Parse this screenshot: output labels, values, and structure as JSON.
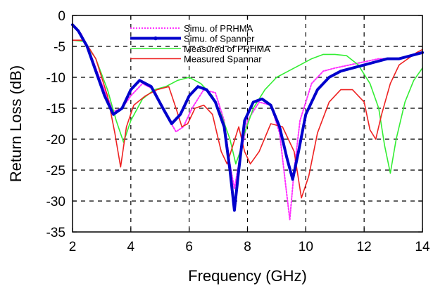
{
  "chart_data": {
    "type": "line",
    "title": "",
    "xlabel": "Frequency (GHz)",
    "ylabel": "Return Loss (dB)",
    "xlim": [
      2,
      14
    ],
    "ylim": [
      -35,
      0
    ],
    "xticks": [
      2,
      4,
      6,
      8,
      10,
      12,
      14
    ],
    "yticks": [
      0,
      -5,
      -10,
      -15,
      -20,
      -25,
      -30,
      -35
    ],
    "grid": true,
    "legend_position": "top-center",
    "series": [
      {
        "name": "Simu. of PRHMA",
        "color": "#ff33ff",
        "dash": "dotted",
        "width": 2,
        "x": [
          2.0,
          2.3,
          2.6,
          3.0,
          3.4,
          3.7,
          4.0,
          4.4,
          4.8,
          5.2,
          5.55,
          5.8,
          6.1,
          6.5,
          6.9,
          7.2,
          7.4,
          7.55,
          7.7,
          8.0,
          8.4,
          8.8,
          9.1,
          9.3,
          9.45,
          9.6,
          9.8,
          10.2,
          10.6,
          11.0,
          11.5,
          12.0,
          12.5,
          12.7
        ],
        "y": [
          -1.5,
          -3,
          -6,
          -11,
          -15.5,
          -15,
          -13,
          -11,
          -12,
          -16,
          -18.8,
          -18,
          -15,
          -12,
          -12.5,
          -17,
          -24,
          -28,
          -24,
          -17,
          -14,
          -14.5,
          -19,
          -27,
          -33,
          -25,
          -17,
          -11,
          -9,
          -8.5,
          -8,
          -7.5,
          -7,
          -7
        ]
      },
      {
        "name": "Simu. of Spanner",
        "color": "#0000cc",
        "dash": "solid",
        "width": 4,
        "x": [
          2.0,
          2.2,
          2.5,
          2.8,
          3.1,
          3.4,
          3.7,
          4.0,
          4.3,
          4.7,
          5.1,
          5.4,
          5.7,
          6.0,
          6.3,
          6.6,
          6.9,
          7.2,
          7.4,
          7.55,
          7.7,
          7.9,
          8.2,
          8.5,
          8.8,
          9.1,
          9.35,
          9.55,
          9.75,
          10.0,
          10.4,
          10.8,
          11.2,
          11.6,
          12.0,
          12.4,
          12.8,
          13.2,
          13.6,
          14.0
        ],
        "y": [
          -1.5,
          -2.5,
          -5,
          -9,
          -13,
          -16,
          -15,
          -12,
          -10.5,
          -11.5,
          -15,
          -17.5,
          -16,
          -13,
          -11.5,
          -12,
          -14,
          -18,
          -25,
          -31.5,
          -25,
          -17,
          -14,
          -13.5,
          -14.5,
          -18,
          -23,
          -26.5,
          -22,
          -16,
          -12,
          -10,
          -9,
          -8.5,
          -8,
          -7.5,
          -7,
          -7,
          -6.5,
          -6
        ]
      },
      {
        "name": "Measured of PRHMA",
        "color": "#33ee33",
        "dash": "solid",
        "width": 1.6,
        "x": [
          2.0,
          2.4,
          2.8,
          3.2,
          3.5,
          3.75,
          4.0,
          4.4,
          4.8,
          5.2,
          5.6,
          6.0,
          6.4,
          6.8,
          7.1,
          7.4,
          7.6,
          7.75,
          7.9,
          8.2,
          8.6,
          9.0,
          9.4,
          9.8,
          10.2,
          10.6,
          11.0,
          11.4,
          11.8,
          12.2,
          12.5,
          12.7,
          12.9,
          13.1,
          13.4,
          13.7,
          14.0
        ],
        "y": [
          -4,
          -4.2,
          -7,
          -12,
          -17,
          -20.5,
          -17,
          -13.5,
          -12,
          -11.5,
          -10.5,
          -10,
          -11,
          -13,
          -16,
          -20,
          -24,
          -22,
          -19,
          -15,
          -12,
          -10,
          -9,
          -8,
          -7,
          -6.3,
          -6.3,
          -6.5,
          -8,
          -11,
          -15,
          -21,
          -25.5,
          -20,
          -14,
          -10.5,
          -8.5
        ]
      },
      {
        "name": "Measured Spannar",
        "color": "#ee2222",
        "dash": "solid",
        "width": 1.6,
        "x": [
          2.0,
          2.4,
          2.8,
          3.2,
          3.45,
          3.65,
          3.85,
          4.1,
          4.5,
          4.9,
          5.3,
          5.55,
          5.75,
          5.95,
          6.2,
          6.5,
          6.8,
          7.1,
          7.3,
          7.5,
          7.7,
          7.9,
          8.1,
          8.4,
          8.8,
          9.2,
          9.6,
          9.85,
          10.1,
          10.4,
          10.8,
          11.2,
          11.6,
          12.0,
          12.2,
          12.4,
          12.6,
          12.9,
          13.2,
          13.5,
          13.8,
          14.0
        ],
        "y": [
          -4,
          -4,
          -7,
          -13,
          -19,
          -24.5,
          -18,
          -14.5,
          -13,
          -12,
          -11.5,
          -15,
          -18,
          -17.5,
          -15,
          -14.5,
          -16,
          -22,
          -24,
          -21,
          -18,
          -22,
          -24,
          -22,
          -17.5,
          -18,
          -22,
          -29.5,
          -26,
          -19,
          -14,
          -12,
          -12,
          -14,
          -18.5,
          -20,
          -16,
          -11,
          -8,
          -7,
          -6,
          -5.5
        ]
      }
    ]
  }
}
